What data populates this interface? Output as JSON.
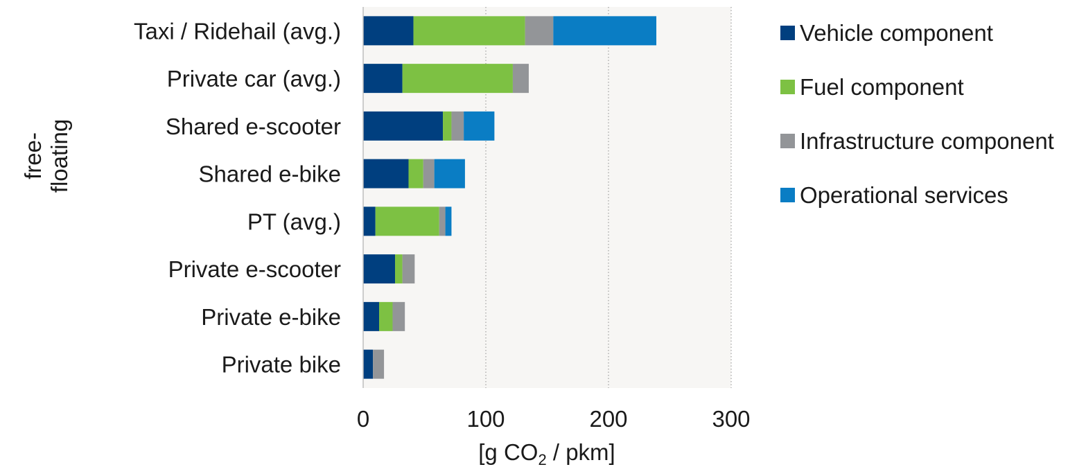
{
  "chart_data": {
    "type": "bar",
    "orientation": "horizontal",
    "stacked": true,
    "categories": [
      "Taxi / Ridehail (avg.)",
      "Private car (avg.)",
      "Shared e-scooter",
      "Shared e-bike",
      "PT (avg.)",
      "Private e-scooter",
      "Private e-bike",
      "Private bike"
    ],
    "series": [
      {
        "name": "Vehicle component",
        "color": "#003f7f",
        "values": [
          41,
          32,
          65,
          37,
          10,
          26,
          13,
          8
        ]
      },
      {
        "name": "Fuel component",
        "color": "#7dc143",
        "values": [
          91,
          90,
          7,
          12,
          52,
          6,
          11,
          0
        ]
      },
      {
        "name": "Infrastructure component",
        "color": "#939598",
        "values": [
          23,
          13,
          10,
          9,
          5,
          10,
          10,
          9
        ]
      },
      {
        "name": "Operational services",
        "color": "#0a7dc4",
        "values": [
          84,
          0,
          25,
          25,
          5,
          0,
          0,
          0
        ]
      }
    ],
    "xlim": [
      0,
      300
    ],
    "xticks": [
      "0",
      "100",
      "200",
      "300"
    ],
    "xlabel": "[g CO",
    "xlabel_sub": "2",
    "xlabel_tail": " / pkm]",
    "group_label_line1": "free-",
    "group_label_line2": "floating",
    "grid": "vertical dotted",
    "legend_position": "right",
    "plot_background": "#f7f6f4"
  }
}
